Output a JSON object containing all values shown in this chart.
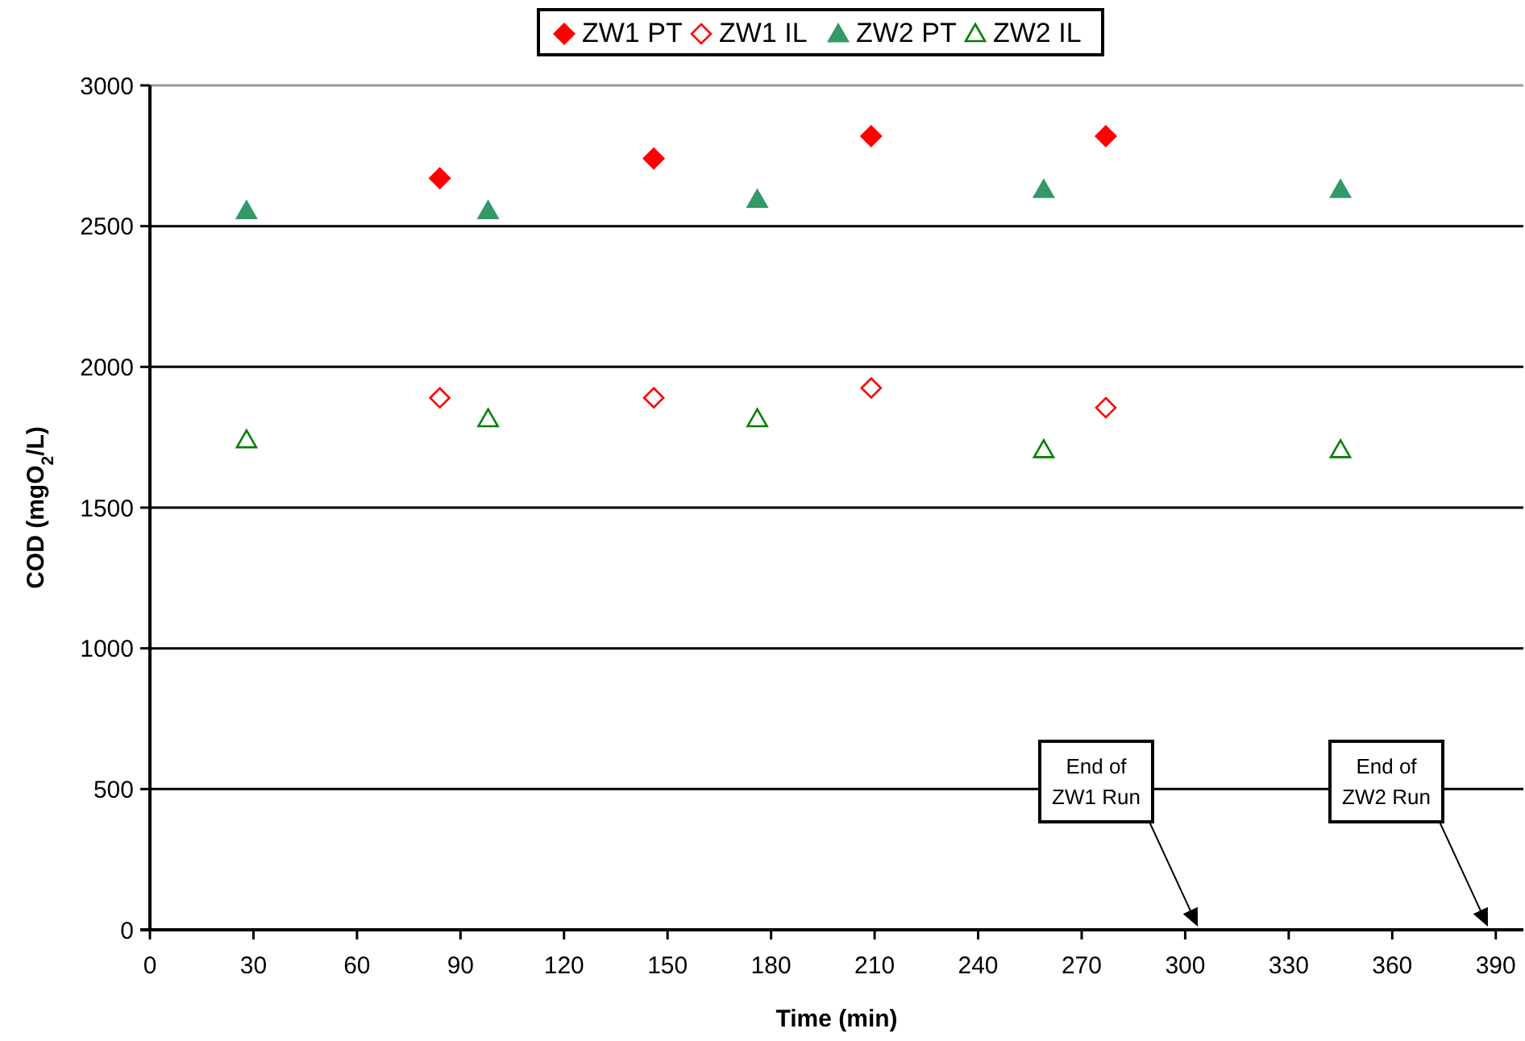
{
  "chart_data": {
    "type": "scatter",
    "xlabel": "Time (min)",
    "ylabel": "COD (mgO$_{2}$/L)",
    "xlim": [
      0,
      398
    ],
    "xticks": [
      0,
      30,
      60,
      90,
      120,
      150,
      180,
      210,
      240,
      270,
      300,
      330,
      360,
      390
    ],
    "ylim": [
      0,
      3000
    ],
    "yticks": [
      0,
      500,
      1000,
      1500,
      2000,
      2500,
      3000
    ],
    "grid": "y",
    "legend": "top",
    "series": [
      {
        "name": "ZW1 PT",
        "color": "#ff0000",
        "marker": "diamond",
        "x": [
          84,
          146,
          209,
          277
        ],
        "values": [
          2670,
          2740,
          2820,
          2820
        ]
      },
      {
        "name": "ZW1 IL",
        "color": "#ff0000",
        "marker": "diamond-open",
        "x": [
          84,
          146,
          209,
          277
        ],
        "values": [
          1890,
          1890,
          1925,
          1855
        ]
      },
      {
        "name": "ZW2 PT",
        "color": "#339966",
        "marker": "triangle",
        "x": [
          28,
          98,
          176,
          259,
          345
        ],
        "values": [
          2555,
          2555,
          2595,
          2630,
          2630
        ]
      },
      {
        "name": "ZW2 IL",
        "color": "#008000",
        "marker": "triangle-open",
        "x": [
          28,
          98,
          176,
          259,
          345
        ],
        "values": [
          1740,
          1815,
          1815,
          1705,
          1705
        ]
      }
    ],
    "annotations": [
      "End of\nZW1 Run",
      "End of\nZW2 Run"
    ]
  }
}
